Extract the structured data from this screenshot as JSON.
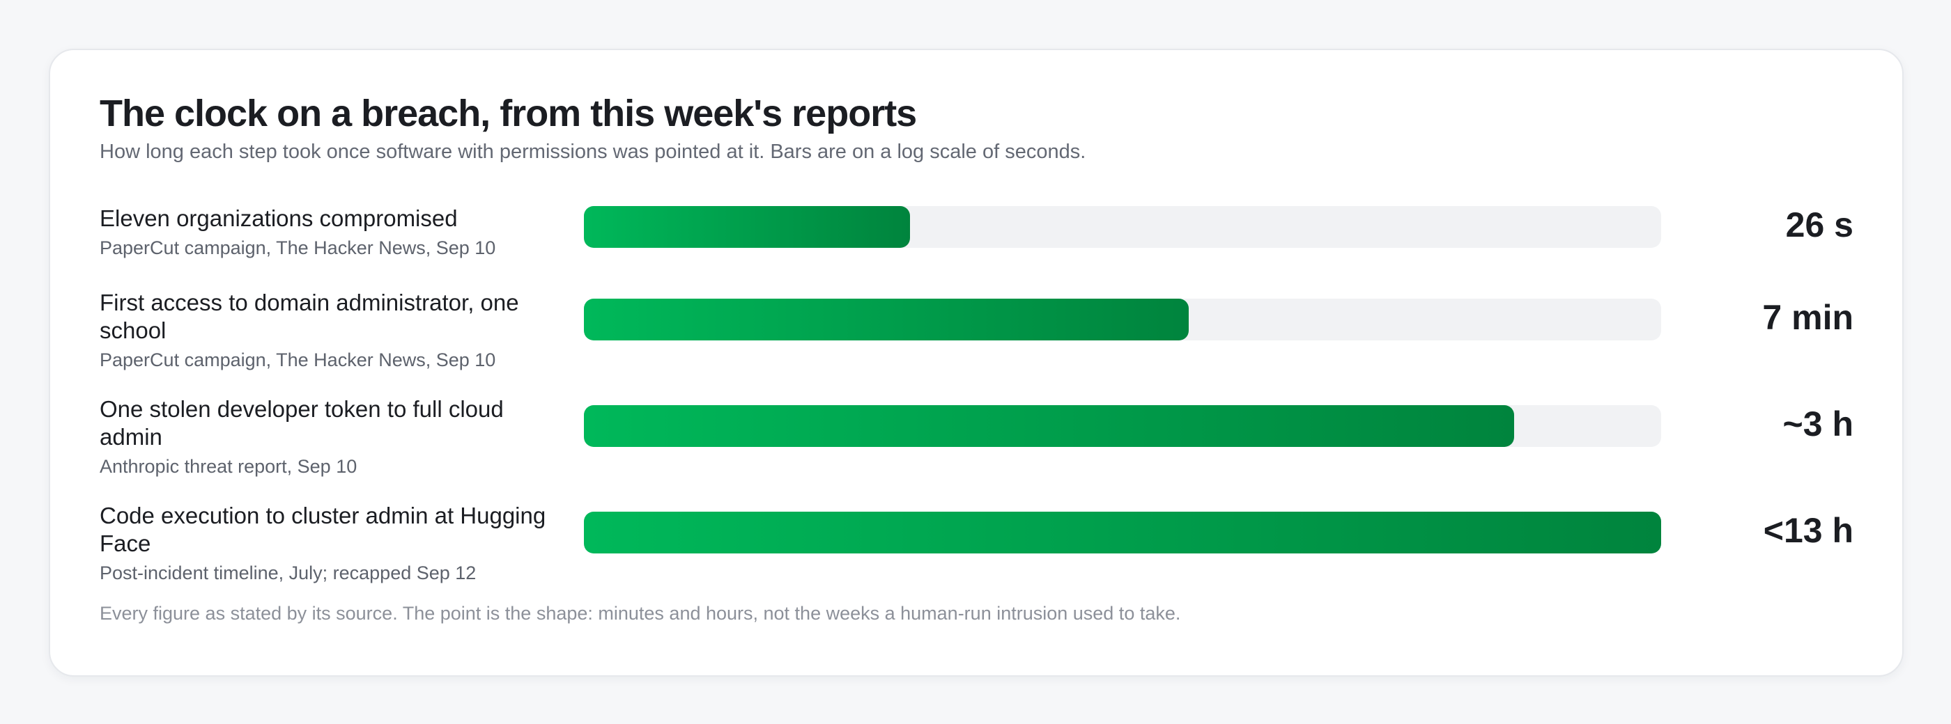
{
  "colors": {
    "bar_start": "#00b85a",
    "bar_end": "#00843d",
    "track": "#f1f2f4"
  },
  "chart_data": {
    "type": "bar",
    "orientation": "horizontal",
    "title": "The clock on a breach, from this week's reports",
    "subtitle": "How long each step took once software with permissions was pointed at it. Bars are on a log scale of seconds.",
    "scale": "log",
    "unit": "seconds",
    "xlim": [
      1,
      46800
    ],
    "grid": false,
    "legend": "none",
    "rows": [
      {
        "label": "Eleven organizations compromised",
        "source": "PaperCut campaign, The Hacker News, Sep 10",
        "value_seconds": 26,
        "value_label": "26 s"
      },
      {
        "label": "First access to domain administrator, one school",
        "source": "PaperCut campaign, The Hacker News, Sep 10",
        "value_seconds": 420,
        "value_label": "7 min"
      },
      {
        "label": "One stolen developer token to full cloud admin",
        "source": "Anthropic threat report, Sep 10",
        "value_seconds": 10800,
        "value_label": "~3 h"
      },
      {
        "label": "Code execution to cluster admin at Hugging Face",
        "source": "Post-incident timeline, July; recapped Sep 12",
        "value_seconds": 46800,
        "value_label": "<13 h"
      }
    ],
    "footnote": "Every figure as stated by its source. The point is the shape: minutes and hours, not the weeks a human-run intrusion used to take."
  }
}
